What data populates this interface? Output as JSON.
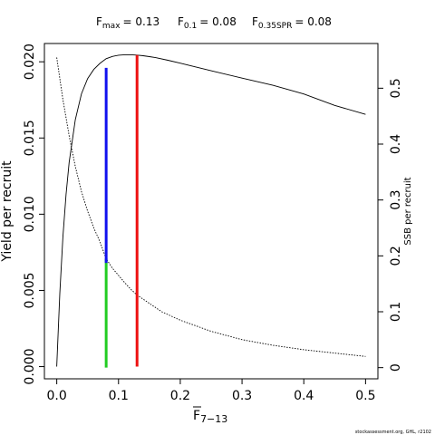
{
  "chart_data": {
    "type": "line",
    "xlabel": "F",
    "xlabel_sub": "7−13",
    "ylabel": "Yield per recruit",
    "y2label": "SSB per recruit",
    "xlim": [
      -0.02,
      0.52
    ],
    "ylim": [
      -0.0008,
      0.0212
    ],
    "y2lim": [
      -0.02,
      0.58
    ],
    "x_ticks": [
      0.0,
      0.1,
      0.2,
      0.3,
      0.4,
      0.5
    ],
    "x_tick_labels": [
      "0.0",
      "0.1",
      "0.2",
      "0.3",
      "0.4",
      "0.5"
    ],
    "y_ticks": [
      0.0,
      0.005,
      0.01,
      0.015,
      0.02
    ],
    "y_tick_labels": [
      "0.000",
      "0.005",
      "0.010",
      "0.015",
      "0.020"
    ],
    "y2_ticks": [
      0,
      0.1,
      0.2,
      0.3,
      0.4,
      0.5
    ],
    "y2_tick_labels": [
      "0",
      "0.1",
      "0.2",
      "0.3",
      "0.4",
      "0.5"
    ],
    "grid": false,
    "series": [
      {
        "name": "",
        "axis": "left",
        "style": "solid",
        "color": "#000000",
        "x": [
          0.0,
          0.005,
          0.01,
          0.015,
          0.02,
          0.03,
          0.04,
          0.05,
          0.06,
          0.07,
          0.08,
          0.09,
          0.1,
          0.11,
          0.12,
          0.13,
          0.14,
          0.15,
          0.16,
          0.18,
          0.2,
          0.22,
          0.25,
          0.3,
          0.35,
          0.4,
          0.45,
          0.5
        ],
        "y": [
          0.0,
          0.0048,
          0.0085,
          0.0113,
          0.0134,
          0.0162,
          0.0179,
          0.0189,
          0.0195,
          0.0199,
          0.0202,
          0.02035,
          0.02043,
          0.02046,
          0.02046,
          0.02044,
          0.0204,
          0.02034,
          0.02027,
          0.0201,
          0.01991,
          0.01971,
          0.01941,
          0.01893,
          0.01846,
          0.01789,
          0.01714,
          0.01655
        ]
      },
      {
        "name": "",
        "axis": "right",
        "style": "dotted",
        "color": "#000000",
        "x": [
          0.0,
          0.01,
          0.02,
          0.03,
          0.04,
          0.05,
          0.06,
          0.07,
          0.08,
          0.09,
          0.1,
          0.11,
          0.12,
          0.13,
          0.15,
          0.17,
          0.2,
          0.25,
          0.3,
          0.35,
          0.4,
          0.45,
          0.5
        ],
        "y": [
          0.555,
          0.48,
          0.415,
          0.36,
          0.315,
          0.28,
          0.25,
          0.225,
          0.195,
          0.178,
          0.165,
          0.152,
          0.14,
          0.13,
          0.115,
          0.1,
          0.085,
          0.065,
          0.05,
          0.04,
          0.032,
          0.026,
          0.02
        ]
      }
    ],
    "reference_lines": [
      {
        "label": "F0.1 (SSB)",
        "color": "#22cc22",
        "x": 0.08,
        "axis": "right",
        "from": 0.0,
        "to": 0.195
      },
      {
        "label": "F0.1 (Yield)",
        "color": "#1111ee",
        "x": 0.08,
        "axis": "left",
        "from": 0.0068,
        "to": 0.0196
      },
      {
        "label": "Fmax",
        "color": "#ee1111",
        "x": 0.13,
        "axis": "left",
        "from": 0.0,
        "to": 0.02044
      }
    ],
    "title_parts": [
      {
        "name": "F",
        "sub": "max",
        "value": "= 0.13"
      },
      {
        "name": "F",
        "sub": "0.1",
        "value": "= 0.08"
      },
      {
        "name": "F",
        "sub": "0.35SPR",
        "value": "= 0.08"
      }
    ],
    "credit": "stockassessment.org, GHL, r2102"
  }
}
